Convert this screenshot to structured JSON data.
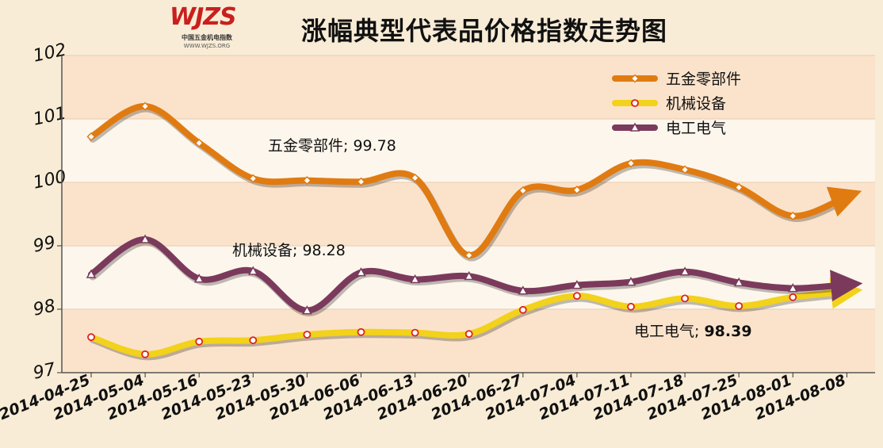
{
  "logo": {
    "mark": "WJZS",
    "subtitle": "中国五金机电指数",
    "url": "WWW.WJZS.ORG"
  },
  "chart_data": {
    "type": "line",
    "title": "涨幅典型代表品价格指数走势图",
    "categories": [
      "2014-04-25",
      "2014-05-04",
      "2014-05-16",
      "2014-05-23",
      "2014-05-30",
      "2014-06-06",
      "2014-06-13",
      "2014-06-20",
      "2014-06-27",
      "2014-07-04",
      "2014-07-11",
      "2014-07-18",
      "2014-07-25",
      "2014-08-01",
      "2014-08-08"
    ],
    "ylim": [
      97,
      102
    ],
    "yticks": [
      97,
      98,
      99,
      100,
      101,
      102
    ],
    "grid": true,
    "legend_position": "top-right",
    "series": [
      {
        "name": "五金零部件",
        "color": "#e07b12",
        "marker": "diamond",
        "values": [
          100.72,
          101.2,
          100.62,
          100.06,
          100.03,
          100.01,
          100.07,
          98.85,
          99.87,
          99.88,
          100.3,
          100.2,
          99.92,
          99.47,
          99.78
        ]
      },
      {
        "name": "机械设备",
        "color": "#f2d21a",
        "marker": "circle",
        "values": [
          97.56,
          97.29,
          97.49,
          97.51,
          97.6,
          97.64,
          97.63,
          97.61,
          97.99,
          98.21,
          98.04,
          98.17,
          98.05,
          98.19,
          98.28
        ]
      },
      {
        "name": "电工电气",
        "color": "#7b3a5c",
        "marker": "triangle",
        "values": [
          98.55,
          99.1,
          98.48,
          98.6,
          97.98,
          98.58,
          98.47,
          98.52,
          98.29,
          98.38,
          98.43,
          98.59,
          98.42,
          98.33,
          98.39
        ]
      }
    ],
    "annotations": [
      {
        "name": "五金零部件",
        "sep": "; ",
        "value": "99.78",
        "bold": false
      },
      {
        "name": "机械设备",
        "sep": "; ",
        "value": "98.28",
        "bold": false
      },
      {
        "name": "电工电气",
        "sep": "; ",
        "value": "98.39",
        "bold": true
      }
    ]
  }
}
